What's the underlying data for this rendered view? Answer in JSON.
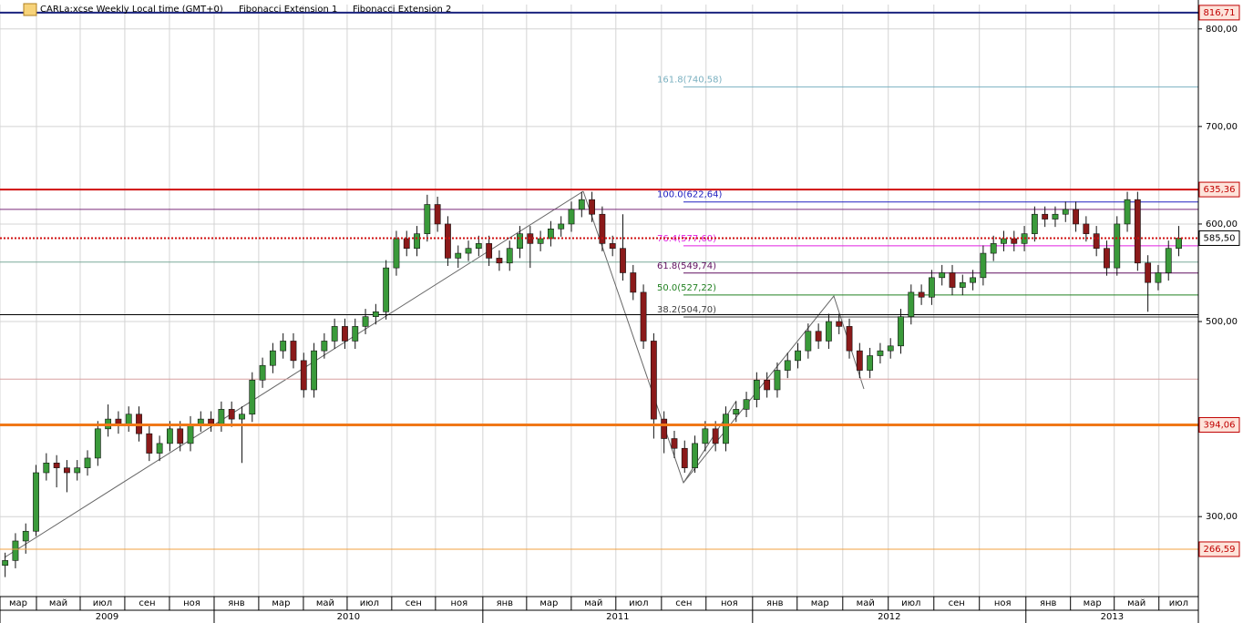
{
  "chart_data": {
    "type": "candlestick",
    "header": [
      "CARLa:xcse Weekly Local time (GMT+0)",
      "Fibonacci Extension 1",
      "Fibonacci Extension 2"
    ],
    "up_color": "#3a9a3a",
    "down_color": "#8b1a1a",
    "open": [
      250,
      255,
      275,
      285,
      345,
      355,
      350,
      345,
      350,
      360,
      390,
      400,
      395,
      405,
      385,
      365,
      375,
      390,
      375,
      395,
      400,
      395,
      410,
      400,
      405,
      440,
      455,
      470,
      480,
      460,
      430,
      470,
      480,
      495,
      480,
      495,
      505,
      510,
      555,
      585,
      575,
      590,
      620,
      600,
      565,
      570,
      575,
      580,
      565,
      560,
      575,
      590,
      580,
      585,
      595,
      600,
      615,
      625,
      610,
      580,
      575,
      550,
      530,
      480,
      400,
      380,
      370,
      350,
      375,
      390,
      375,
      405,
      410,
      420,
      440,
      430,
      450,
      460,
      470,
      490,
      480,
      500,
      495,
      470,
      450,
      465,
      470,
      475,
      505,
      530,
      525,
      545,
      550,
      535,
      540,
      545,
      570,
      580,
      585,
      580,
      590,
      610,
      605,
      610,
      615,
      600,
      590,
      575,
      555,
      600,
      625,
      560,
      540,
      550,
      575
    ],
    "high": [
      263,
      283,
      293,
      353,
      365,
      363,
      358,
      358,
      368,
      398,
      415,
      408,
      413,
      413,
      393,
      383,
      398,
      398,
      403,
      408,
      408,
      418,
      418,
      413,
      448,
      463,
      478,
      488,
      488,
      468,
      478,
      488,
      503,
      503,
      503,
      513,
      518,
      563,
      593,
      593,
      598,
      630,
      628,
      608,
      578,
      583,
      588,
      588,
      573,
      583,
      598,
      598,
      593,
      603,
      608,
      623,
      633,
      633,
      618,
      588,
      610,
      558,
      538,
      488,
      408,
      388,
      378,
      383,
      398,
      398,
      413,
      418,
      428,
      448,
      448,
      458,
      468,
      478,
      498,
      498,
      508,
      508,
      503,
      478,
      473,
      478,
      483,
      513,
      538,
      538,
      553,
      558,
      558,
      548,
      553,
      578,
      588,
      593,
      593,
      598,
      618,
      618,
      618,
      623,
      623,
      608,
      598,
      583,
      608,
      633,
      633,
      568,
      558,
      583,
      598
    ],
    "low": [
      238,
      247,
      262,
      280,
      337,
      330,
      325,
      337,
      342,
      352,
      382,
      385,
      387,
      377,
      357,
      357,
      367,
      367,
      367,
      387,
      387,
      387,
      392,
      355,
      397,
      432,
      447,
      462,
      452,
      422,
      422,
      462,
      472,
      472,
      472,
      487,
      497,
      502,
      547,
      567,
      567,
      582,
      592,
      557,
      555,
      562,
      567,
      557,
      552,
      552,
      565,
      555,
      572,
      577,
      587,
      592,
      607,
      602,
      572,
      567,
      542,
      522,
      472,
      380,
      365,
      360,
      345,
      345,
      367,
      367,
      367,
      397,
      402,
      412,
      422,
      422,
      442,
      452,
      462,
      472,
      472,
      487,
      462,
      442,
      442,
      457,
      462,
      467,
      497,
      517,
      517,
      537,
      527,
      527,
      532,
      537,
      562,
      572,
      572,
      572,
      582,
      597,
      597,
      602,
      592,
      582,
      567,
      547,
      547,
      592,
      552,
      510,
      532,
      542,
      567
    ],
    "close": [
      255,
      275,
      285,
      345,
      355,
      350,
      345,
      350,
      360,
      390,
      400,
      395,
      405,
      385,
      365,
      375,
      390,
      375,
      395,
      400,
      395,
      410,
      400,
      405,
      440,
      455,
      470,
      480,
      460,
      430,
      470,
      480,
      495,
      480,
      495,
      505,
      510,
      555,
      585,
      575,
      590,
      620,
      600,
      565,
      570,
      575,
      580,
      565,
      560,
      575,
      590,
      580,
      585,
      595,
      600,
      615,
      625,
      610,
      580,
      575,
      550,
      530,
      480,
      400,
      380,
      370,
      350,
      375,
      390,
      375,
      405,
      410,
      420,
      440,
      430,
      450,
      460,
      470,
      490,
      480,
      500,
      495,
      470,
      450,
      465,
      470,
      475,
      505,
      530,
      525,
      545,
      550,
      535,
      540,
      545,
      570,
      580,
      585,
      580,
      590,
      610,
      605,
      610,
      615,
      600,
      590,
      575,
      555,
      600,
      625,
      560,
      540,
      550,
      575,
      585.5
    ],
    "xlim": [
      0,
      116.4
    ],
    "xticks": [
      {
        "value": 0,
        "label": "мар"
      },
      {
        "value": 3.54,
        "label": "май"
      },
      {
        "value": 7.79,
        "label": "июл"
      },
      {
        "value": 12.12,
        "label": "сен"
      },
      {
        "value": 16.46,
        "label": "ноя"
      },
      {
        "value": 20.8,
        "label": "янв"
      },
      {
        "value": 25.13,
        "label": "мар"
      },
      {
        "value": 29.47,
        "label": "май"
      },
      {
        "value": 33.72,
        "label": "июл"
      },
      {
        "value": 38.05,
        "label": "сен"
      },
      {
        "value": 42.3,
        "label": "ноя"
      },
      {
        "value": 46.9,
        "label": "янв"
      },
      {
        "value": 51.15,
        "label": "мар"
      },
      {
        "value": 55.49,
        "label": "май"
      },
      {
        "value": 59.82,
        "label": "июл"
      },
      {
        "value": 64.25,
        "label": "сен"
      },
      {
        "value": 68.58,
        "label": "ноя"
      },
      {
        "value": 73.1,
        "label": "янв"
      },
      {
        "value": 77.43,
        "label": "мар"
      },
      {
        "value": 81.86,
        "label": "май"
      },
      {
        "value": 86.28,
        "label": "июл"
      },
      {
        "value": 90.71,
        "label": "сен"
      },
      {
        "value": 95.13,
        "label": "ноя"
      },
      {
        "value": 99.65,
        "label": "янв"
      },
      {
        "value": 103.98,
        "label": "мар"
      },
      {
        "value": 108.23,
        "label": "май"
      },
      {
        "value": 112.57,
        "label": "июл"
      }
    ],
    "years": [
      {
        "value": 0,
        "label": "2009"
      },
      {
        "value": 20.8,
        "label": "2010"
      },
      {
        "value": 46.9,
        "label": "2011"
      },
      {
        "value": 73.1,
        "label": "2012"
      },
      {
        "value": 99.65,
        "label": "2013"
      }
    ],
    "ylim": [
      218,
      825
    ],
    "yticks": [
      {
        "value": 300,
        "label": "300,00"
      },
      {
        "value": 500,
        "label": "500,00"
      },
      {
        "value": 600,
        "label": "600,00"
      },
      {
        "value": 700,
        "label": "700,00"
      },
      {
        "value": 800,
        "label": "800,00"
      }
    ],
    "levels": [
      {
        "value": 816.71,
        "label": "816,71",
        "color": "#1a237e",
        "width": 2,
        "label_color": "#c00000"
      },
      {
        "value": 635.36,
        "label": "635,36",
        "color": "#d01010",
        "width": 2,
        "label_color": "#c00000"
      },
      {
        "value": 585.5,
        "label": "585,50",
        "color": "#d01010",
        "width": 2,
        "dash": true,
        "label_color": "#000000"
      },
      {
        "value": 394.06,
        "label": "394,06",
        "color": "#f07818",
        "width": 3,
        "label_color": "#c00000"
      },
      {
        "value": 266.59,
        "label": "266,59",
        "color": "#f0a040",
        "width": 1,
        "label_color": "#c00000"
      }
    ],
    "lines": [
      {
        "value": 615,
        "color": "#7a2a7a"
      },
      {
        "value": 561,
        "color": "#7aaa9a"
      },
      {
        "value": 507,
        "color": "#000000"
      },
      {
        "value": 441,
        "color": "#d8a0a0"
      }
    ],
    "fib": [
      {
        "value": 740.58,
        "label": "161.8(740,58)",
        "color": "#7ab0c0"
      },
      {
        "value": 622.64,
        "label": "100.0(622,64)",
        "color": "#2020c0"
      },
      {
        "value": 577.6,
        "label": "76.4(577,60)",
        "color": "#e020e0"
      },
      {
        "value": 549.74,
        "label": "61.8(549,74)",
        "color": "#601060"
      },
      {
        "value": 527.22,
        "label": "50.0(527,22)",
        "color": "#208020"
      },
      {
        "value": 504.7,
        "label": "38.2(504,70)",
        "color": "#404040"
      }
    ]
  }
}
